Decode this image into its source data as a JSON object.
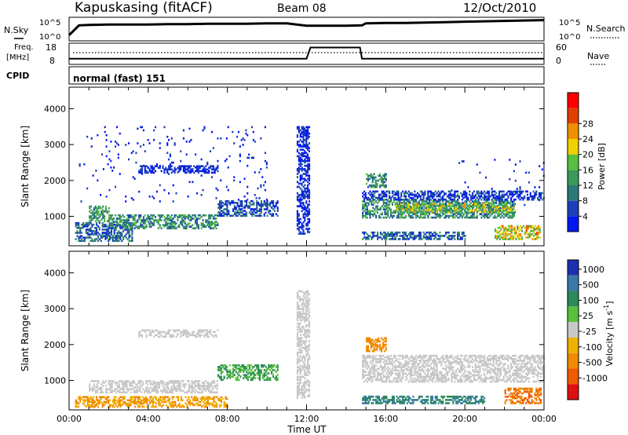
{
  "header": {
    "station": "Kapuskasing (fitACF)",
    "beam": "Beam 08",
    "date": "12/Oct/2010",
    "cpid_label": "CPID",
    "mode": "normal (fast) 151"
  },
  "noise_panel": {
    "left_label": "N.Sky",
    "right_label": "N.Search",
    "ticks": [
      "10^5",
      "10^0"
    ]
  },
  "freq_panel": {
    "left_label_line1": "Freq.",
    "left_label_line2": "[MHz]",
    "left_ticks": [
      "18",
      "8"
    ],
    "right_label": "Nave",
    "right_ticks": [
      "60",
      "0"
    ]
  },
  "colors": {
    "power": [
      "#0018f0",
      "#1d3fb8",
      "#2a7a7a",
      "#3a9a5a",
      "#58c040",
      "#f0d000",
      "#f09000",
      "#e04000",
      "#ff0000"
    ],
    "velocity": [
      "#1c2fb0",
      "#3a78a8",
      "#2a8a5a",
      "#59c03c",
      "#c8c8c8",
      "#f0b000",
      "#f08a00",
      "#f05a00",
      "#e01010"
    ]
  },
  "chart_data": [
    {
      "type": "line",
      "name": "noise",
      "x": [
        0,
        0.5,
        1,
        2,
        3,
        4,
        5,
        6,
        7,
        8,
        9,
        10,
        11,
        12,
        13,
        14,
        14.8,
        15,
        16,
        17,
        18,
        19,
        20,
        21,
        22,
        23,
        24
      ],
      "series": [
        {
          "values": [
            1,
            3.4,
            3.5,
            3.6,
            3.6,
            3.6,
            3.7,
            3.7,
            3.8,
            3.8,
            3.8,
            3.9,
            3.9,
            3.3,
            3.3,
            3.3,
            3.4,
            3.9,
            4.0,
            4.0,
            4.1,
            4.2,
            4.3,
            4.4,
            4.5,
            4.6,
            4.7
          ]
        }
      ]
    },
    {
      "type": "line",
      "name": "frequency",
      "x": [
        0,
        4,
        8,
        12,
        12.2,
        14.7,
        14.8,
        20,
        24
      ],
      "series": [
        {
          "values": [
            10.3,
            10.3,
            10.3,
            10.3,
            16.5,
            16.5,
            10.3,
            10.3,
            10.3
          ]
        }
      ]
    },
    {
      "type": "heatmap",
      "title": "Power",
      "ylabel": "Slant Range [km]",
      "ylim": [
        180,
        4600
      ],
      "yticks": [
        "1000",
        "2000",
        "3000",
        "4000"
      ],
      "xlim": [
        0,
        24
      ],
      "colorbar": {
        "label": "Power [dB]",
        "ticks": [
          "4",
          "8",
          "12",
          "16",
          "20",
          "24",
          "28"
        ],
        "range": [
          0,
          32
        ]
      },
      "regions": [
        {
          "t0": 0.3,
          "t1": 3.2,
          "r0": 300,
          "r1": 800,
          "v": 8
        },
        {
          "t0": 1.0,
          "t1": 2.0,
          "r0": 850,
          "r1": 1300,
          "v": 14
        },
        {
          "t0": 2.0,
          "t1": 7.5,
          "r0": 650,
          "r1": 1050,
          "v": 12
        },
        {
          "t0": 7.5,
          "t1": 10.5,
          "r0": 1000,
          "r1": 1450,
          "v": 6
        },
        {
          "t0": 3.5,
          "t1": 7.5,
          "r0": 2200,
          "r1": 2420,
          "v": 4
        },
        {
          "t0": 0.5,
          "t1": 10,
          "r0": 1400,
          "r1": 3500,
          "v": 3,
          "d": 0.03
        },
        {
          "t0": 11.5,
          "t1": 12.1,
          "r0": 500,
          "r1": 3500,
          "v": 4
        },
        {
          "t0": 14.8,
          "t1": 22.5,
          "r0": 950,
          "r1": 1450,
          "v": 12
        },
        {
          "t0": 16.5,
          "t1": 22.5,
          "r0": 1100,
          "r1": 1350,
          "v": 18
        },
        {
          "t0": 14.8,
          "t1": 24,
          "r0": 1450,
          "r1": 1700,
          "v": 5
        },
        {
          "t0": 14.8,
          "t1": 20,
          "r0": 350,
          "r1": 550,
          "v": 8
        },
        {
          "t0": 21.5,
          "t1": 23.8,
          "r0": 350,
          "r1": 750,
          "v": 22
        },
        {
          "t0": 15,
          "t1": 16,
          "r0": 1800,
          "r1": 2200,
          "v": 12
        },
        {
          "t0": 19,
          "t1": 24,
          "r0": 1300,
          "r1": 2600,
          "v": 4,
          "d": 0.03
        }
      ]
    },
    {
      "type": "heatmap",
      "title": "Velocity",
      "ylabel": "Slant Range [km]",
      "xlabel": "Time UT",
      "ylim": [
        180,
        4600
      ],
      "yticks": [
        "1000",
        "2000",
        "3000",
        "4000"
      ],
      "xlim": [
        0,
        24
      ],
      "xticks": [
        "00:00",
        "04:00",
        "08:00",
        "12:00",
        "16:00",
        "20:00",
        "00:00"
      ],
      "colorbar": {
        "label": "Velocity [m s",
        "label_sup": "-1",
        "ticks": [
          "1000",
          "500",
          "100",
          "25",
          "-25",
          "-100",
          "-500",
          "-1000"
        ]
      },
      "regions": [
        {
          "t0": 0.3,
          "t1": 8,
          "r0": 250,
          "r1": 550,
          "v": -100
        },
        {
          "t0": 1.0,
          "t1": 7.5,
          "r0": 650,
          "r1": 1000,
          "v": 0
        },
        {
          "t0": 3.5,
          "t1": 7.5,
          "r0": 2200,
          "r1": 2420,
          "v": 0
        },
        {
          "t0": 7.5,
          "t1": 10.5,
          "r0": 1000,
          "r1": 1450,
          "v": 100
        },
        {
          "t0": 11.5,
          "t1": 12.1,
          "r0": 500,
          "r1": 3500,
          "v": 0
        },
        {
          "t0": 14.8,
          "t1": 24,
          "r0": 950,
          "r1": 1700,
          "v": 0
        },
        {
          "t0": 14.8,
          "t1": 21,
          "r0": 350,
          "r1": 550,
          "v": 500
        },
        {
          "t0": 22,
          "t1": 23.8,
          "r0": 350,
          "r1": 800,
          "v": -500
        },
        {
          "t0": 15,
          "t1": 16,
          "r0": 1800,
          "r1": 2200,
          "v": -200
        }
      ]
    }
  ]
}
